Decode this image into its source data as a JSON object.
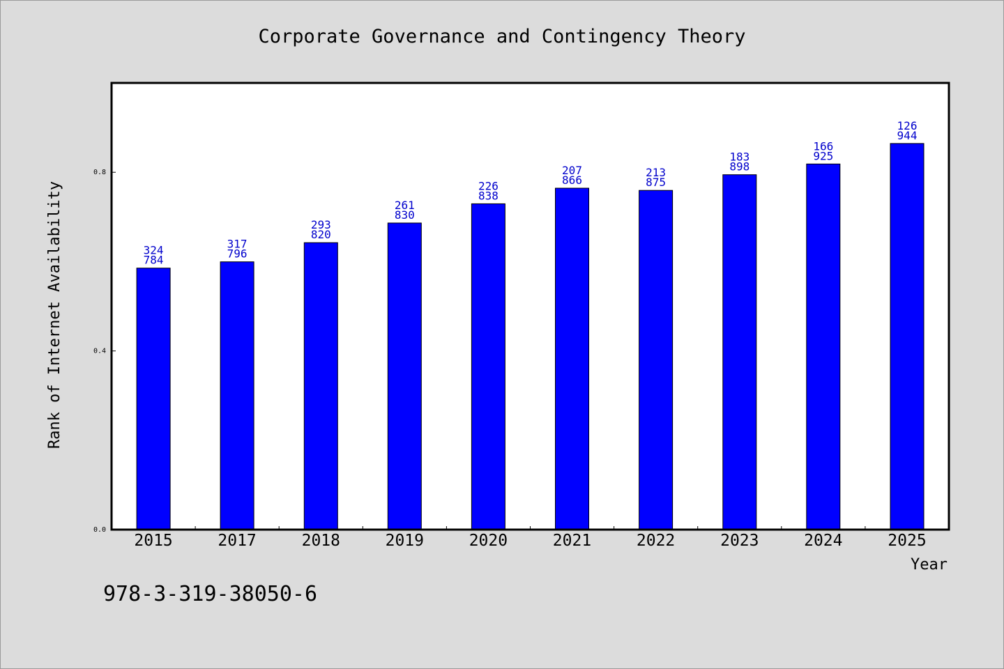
{
  "chart_data": {
    "type": "bar",
    "title": "Corporate Governance and Contingency Theory",
    "xlabel": "Year",
    "ylabel": "Rank of Internet Availability",
    "categories": [
      "2015",
      "2017",
      "2018",
      "2019",
      "2020",
      "2021",
      "2022",
      "2023",
      "2024",
      "2025"
    ],
    "values": [
      0.5855,
      0.5995,
      0.6425,
      0.6865,
      0.7295,
      0.7645,
      0.7595,
      0.7945,
      0.8185,
      0.8645
    ],
    "data_labels": [
      [
        "324",
        "784"
      ],
      [
        "317",
        "796"
      ],
      [
        "293",
        "820"
      ],
      [
        "261",
        "830"
      ],
      [
        "226",
        "838"
      ],
      [
        "207",
        "866"
      ],
      [
        "213",
        "875"
      ],
      [
        "183",
        "898"
      ],
      [
        "166",
        "925"
      ],
      [
        "126",
        "944"
      ]
    ],
    "y_ticks": [
      "0.0",
      "0.4",
      "0.8"
    ],
    "ylim": [
      0,
      1.0
    ],
    "grid": false,
    "bar_color": "#0000ff",
    "label_color": "#0000cc"
  },
  "footnote": "978-3-319-38050-6"
}
